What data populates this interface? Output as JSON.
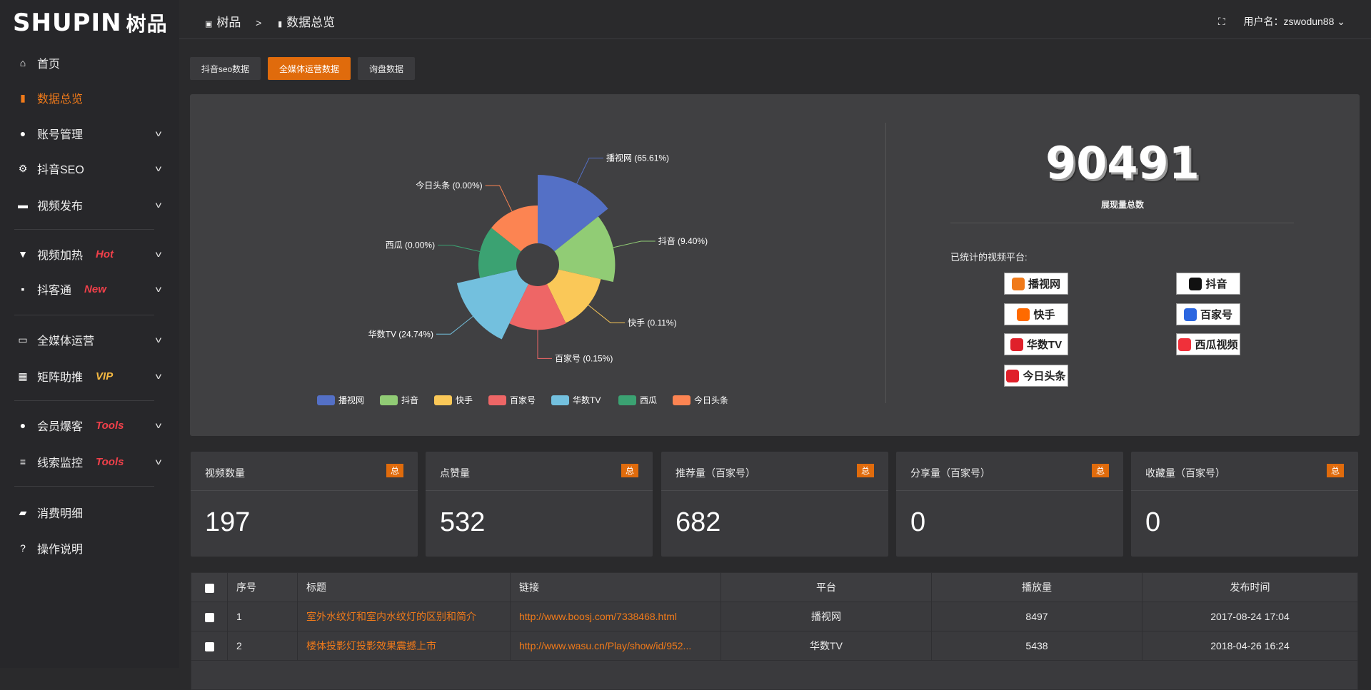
{
  "logo": {
    "text": "SHUPIN",
    "cn": "树品"
  },
  "sidebar": {
    "items": [
      {
        "label": "首页",
        "icon": "home-icon",
        "glyph": "⌂"
      },
      {
        "label": "数据总览",
        "icon": "bar-chart-icon",
        "glyph": "▮",
        "active": true
      },
      {
        "label": "账号管理",
        "icon": "user-icon",
        "glyph": "●",
        "chevron": true
      },
      {
        "label": "抖音SEO",
        "icon": "gear-icon",
        "glyph": "⚙",
        "chevron": true
      },
      {
        "label": "视频发布",
        "icon": "camera-icon",
        "glyph": "▬",
        "chevron": true
      },
      {
        "label": "视频加热",
        "icon": "signboard-icon",
        "glyph": "▼",
        "tag": "Hot",
        "tagColor": "#f0404a",
        "chevron": true
      },
      {
        "label": "抖客通",
        "icon": "chat-icon",
        "glyph": "▪",
        "tag": "New",
        "tagColor": "#f0404a",
        "chevron": true
      },
      {
        "label": "全媒体运营",
        "icon": "monitor-icon",
        "glyph": "▭",
        "chevron": true
      },
      {
        "label": "矩阵助推",
        "icon": "grid-icon",
        "glyph": "▦",
        "tag": "VIP",
        "tagColor": "#f5b942",
        "chevron": true
      },
      {
        "label": "会员爆客",
        "icon": "user-icon",
        "glyph": "●",
        "tag": "Tools",
        "tagColor": "#f0404a",
        "chevron": true
      },
      {
        "label": "线索监控",
        "icon": "sliders-icon",
        "glyph": "≡",
        "tag": "Tools",
        "tagColor": "#f0404a",
        "chevron": true
      },
      {
        "label": "消费明细",
        "icon": "wallet-icon",
        "glyph": "▰"
      },
      {
        "label": "操作说明",
        "icon": "help-icon",
        "glyph": "?"
      }
    ]
  },
  "header": {
    "crumb_root": "树品",
    "crumb_sep": ">",
    "crumb_current": "数据总览",
    "username": "用户名：zswodun88"
  },
  "tabs": [
    "抖音seo数据",
    "全媒体运营数据",
    "询盘数据"
  ],
  "chart_data": {
    "type": "pie",
    "rose": true,
    "categories": [
      "播视网",
      "抖音",
      "快手",
      "百家号",
      "华数TV",
      "西瓜",
      "今日头条"
    ],
    "values": [
      65.61,
      9.4,
      0.11,
      0.15,
      24.74,
      0.0,
      0.0
    ],
    "labels": [
      "播视网 (65.61%)",
      "抖音 (9.40%)",
      "快手 (0.11%)",
      "百家号 (0.15%)",
      "华数TV (24.74%)",
      "西瓜 (0.00%)",
      "今日头条 (0.00%)"
    ],
    "colors": [
      "#5470c6",
      "#91cc75",
      "#fac858",
      "#ee6666",
      "#73c0de",
      "#3ba272",
      "#fc8452"
    ],
    "legend": "bottom"
  },
  "summary": {
    "total": "90491",
    "total_label": "展现量总数",
    "platforms_title": "已统计的视频平台:",
    "platforms": [
      {
        "name": "播视网",
        "color": "#f07a1a"
      },
      {
        "name": "抖音",
        "color": "#111"
      },
      {
        "name": "快手",
        "color": "#ff6a00"
      },
      {
        "name": "百家号",
        "color": "#2b66e0"
      },
      {
        "name": "华数TV",
        "color": "#e0202a"
      },
      {
        "name": "西瓜视频",
        "color": "#f0303a"
      },
      {
        "name": "今日头条",
        "color": "#e0202a"
      }
    ]
  },
  "cards": [
    {
      "title": "视频数量",
      "badge": "总",
      "value": "197"
    },
    {
      "title": "点赞量",
      "badge": "总",
      "value": "532"
    },
    {
      "title": "推荐量（百家号）",
      "badge": "总",
      "value": "682"
    },
    {
      "title": "分享量（百家号）",
      "badge": "总",
      "value": "0"
    },
    {
      "title": "收藏量（百家号）",
      "badge": "总",
      "value": "0"
    }
  ],
  "table": {
    "headers": [
      "序号",
      "标题",
      "链接",
      "平台",
      "播放量",
      "发布时间"
    ],
    "rows": [
      [
        "1",
        "室外水纹灯和室内水纹灯的区别和简介",
        "http://www.boosj.com/7338468.html",
        "播视网",
        "8497",
        "2017-08-24 17:04"
      ],
      [
        "2",
        "楼体投影灯投影效果震撼上市",
        "http://www.wasu.cn/Play/show/id/952...",
        "华数TV",
        "5438",
        "2018-04-26 16:24"
      ]
    ]
  }
}
